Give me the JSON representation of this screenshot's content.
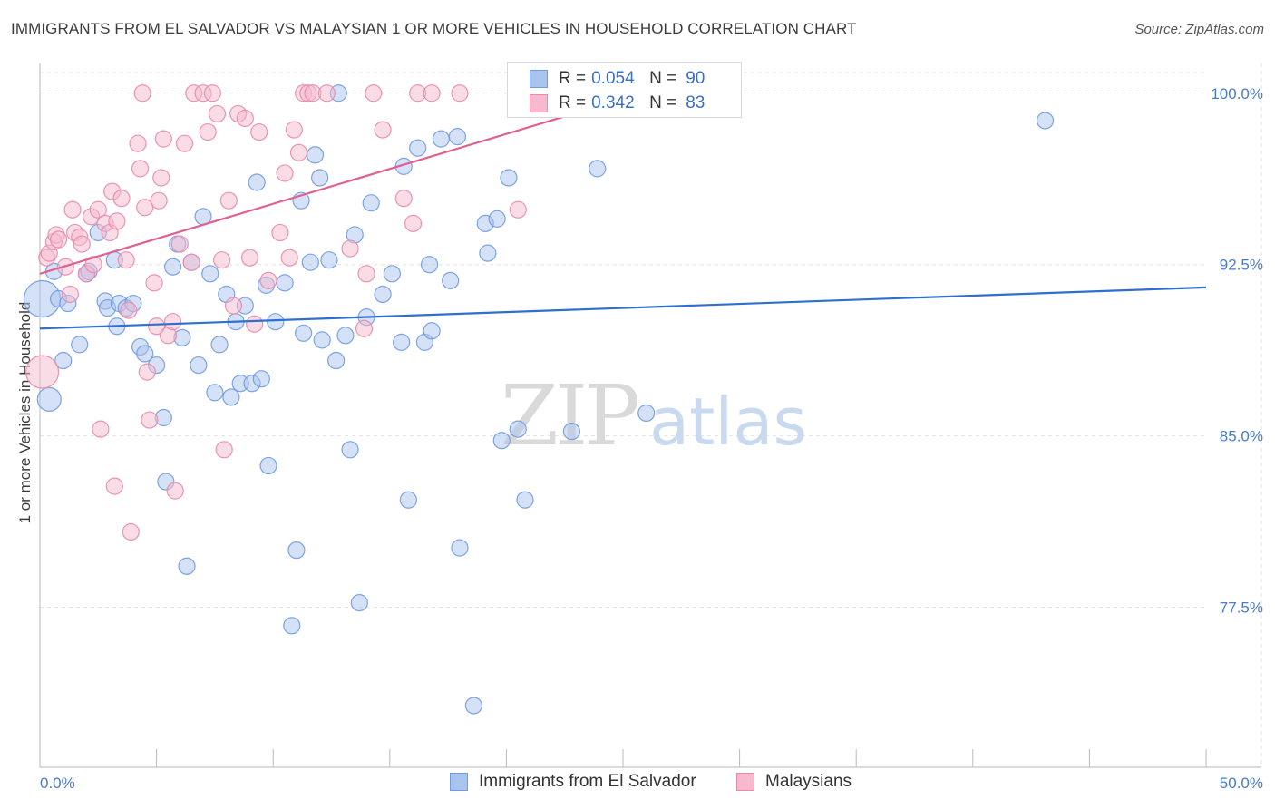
{
  "title": "IMMIGRANTS FROM EL SALVADOR VS MALAYSIAN 1 OR MORE VEHICLES IN HOUSEHOLD CORRELATION CHART",
  "source": "Source: ZipAtlas.com",
  "watermark": {
    "part1": "ZIP",
    "part2": "atlas"
  },
  "colors": {
    "blue_fill": "#a9c4ee",
    "blue_stroke": "#6f9be0",
    "blue_line": "#2f6fcf",
    "pink_fill": "#f6b9cd",
    "pink_stroke": "#e98aab",
    "pink_line": "#e0618f",
    "tick": "#4a7cc7",
    "grid": "#e2e2e2"
  },
  "legend": {
    "rows": [
      {
        "r_label": "R =",
        "r_value": "0.054",
        "n_label": "N =",
        "n_value": "90"
      },
      {
        "r_label": "R =",
        "r_value": "0.342",
        "n_label": "N =",
        "n_value": "83"
      }
    ]
  },
  "bottom_legend": {
    "series1": "Immigrants from El Salvador",
    "series2": "Malaysians"
  },
  "chart_data": {
    "type": "scatter",
    "title": "IMMIGRANTS FROM EL SALVADOR VS MALAYSIAN 1 OR MORE VEHICLES IN HOUSEHOLD CORRELATION CHART",
    "xlabel": "",
    "ylabel": "1 or more Vehicles in Household",
    "xlim": [
      0,
      50
    ],
    "ylim": [
      70.5,
      101.3
    ],
    "x_tick_labels": [
      {
        "value": 0,
        "label": "0.0%"
      },
      {
        "value": 50,
        "label": "50.0%"
      }
    ],
    "y_tick_labels": [
      {
        "value": 100,
        "label": "100.0%"
      },
      {
        "value": 92.5,
        "label": "92.5%"
      },
      {
        "value": 85,
        "label": "85.0%"
      },
      {
        "value": 77.5,
        "label": "77.5%"
      }
    ],
    "grid": true,
    "legend_position": "top-center",
    "series": [
      {
        "name": "Immigrants from El Salvador",
        "color": "#a9c4ee",
        "trend": {
          "x": [
            0,
            50
          ],
          "y": [
            89.7,
            91.5
          ]
        },
        "points": [
          [
            0.1,
            91.0
          ],
          [
            0.4,
            86.6
          ],
          [
            0.6,
            92.2
          ],
          [
            0.8,
            91.0
          ],
          [
            1.2,
            90.8
          ],
          [
            1.0,
            88.3
          ],
          [
            1.7,
            89.0
          ],
          [
            2.0,
            92.1
          ],
          [
            2.1,
            92.2
          ],
          [
            2.5,
            93.9
          ],
          [
            2.8,
            90.9
          ],
          [
            2.9,
            90.6
          ],
          [
            3.2,
            92.7
          ],
          [
            3.3,
            89.8
          ],
          [
            3.4,
            90.8
          ],
          [
            3.7,
            90.6
          ],
          [
            4.0,
            90.8
          ],
          [
            4.3,
            88.9
          ],
          [
            4.5,
            88.6
          ],
          [
            5.0,
            88.1
          ],
          [
            5.3,
            85.8
          ],
          [
            5.4,
            83.0
          ],
          [
            5.7,
            92.4
          ],
          [
            5.9,
            93.4
          ],
          [
            6.1,
            89.3
          ],
          [
            6.3,
            79.3
          ],
          [
            6.5,
            92.6
          ],
          [
            6.8,
            88.1
          ],
          [
            7.0,
            94.6
          ],
          [
            7.3,
            92.1
          ],
          [
            7.5,
            86.9
          ],
          [
            7.7,
            89.0
          ],
          [
            8.0,
            91.2
          ],
          [
            8.2,
            86.7
          ],
          [
            8.4,
            90.0
          ],
          [
            8.6,
            87.3
          ],
          [
            8.8,
            90.7
          ],
          [
            9.1,
            87.3
          ],
          [
            9.3,
            96.1
          ],
          [
            9.5,
            87.5
          ],
          [
            9.7,
            91.6
          ],
          [
            9.8,
            83.7
          ],
          [
            10.1,
            90.0
          ],
          [
            10.5,
            91.7
          ],
          [
            10.8,
            76.7
          ],
          [
            11.0,
            80.0
          ],
          [
            11.2,
            95.3
          ],
          [
            11.3,
            89.5
          ],
          [
            11.6,
            92.6
          ],
          [
            11.8,
            97.3
          ],
          [
            12.0,
            96.3
          ],
          [
            12.1,
            89.2
          ],
          [
            12.4,
            92.7
          ],
          [
            12.7,
            88.3
          ],
          [
            12.8,
            100.0
          ],
          [
            13.1,
            89.4
          ],
          [
            13.3,
            84.4
          ],
          [
            13.5,
            93.8
          ],
          [
            13.7,
            77.7
          ],
          [
            14.0,
            90.2
          ],
          [
            14.2,
            95.2
          ],
          [
            14.7,
            91.2
          ],
          [
            15.1,
            92.1
          ],
          [
            15.5,
            89.1
          ],
          [
            15.6,
            96.8
          ],
          [
            15.8,
            82.2
          ],
          [
            16.2,
            97.6
          ],
          [
            16.5,
            89.1
          ],
          [
            16.7,
            92.5
          ],
          [
            16.8,
            89.6
          ],
          [
            17.2,
            98.0
          ],
          [
            17.6,
            91.8
          ],
          [
            17.9,
            98.1
          ],
          [
            18.0,
            80.1
          ],
          [
            18.6,
            73.2
          ],
          [
            19.1,
            94.3
          ],
          [
            19.2,
            93.0
          ],
          [
            19.6,
            94.5
          ],
          [
            19.8,
            84.8
          ],
          [
            20.1,
            96.3
          ],
          [
            20.5,
            85.3
          ],
          [
            20.8,
            82.2
          ],
          [
            22.8,
            85.2
          ],
          [
            23.9,
            96.7
          ],
          [
            26.0,
            86.0
          ],
          [
            43.1,
            98.8
          ]
        ]
      },
      {
        "name": "Malaysians",
        "color": "#f6b9cd",
        "trend": {
          "x": [
            0,
            25.5
          ],
          "y": [
            92.1,
            99.9
          ]
        },
        "points": [
          [
            0.1,
            87.8
          ],
          [
            0.3,
            92.8
          ],
          [
            0.4,
            93.0
          ],
          [
            0.6,
            93.5
          ],
          [
            0.7,
            93.8
          ],
          [
            0.8,
            93.6
          ],
          [
            1.1,
            92.4
          ],
          [
            1.3,
            91.2
          ],
          [
            1.4,
            94.9
          ],
          [
            1.5,
            93.9
          ],
          [
            1.7,
            93.7
          ],
          [
            1.8,
            93.4
          ],
          [
            2.0,
            92.1
          ],
          [
            2.2,
            94.6
          ],
          [
            2.3,
            92.5
          ],
          [
            2.5,
            94.9
          ],
          [
            2.6,
            85.3
          ],
          [
            2.8,
            94.3
          ],
          [
            3.0,
            93.9
          ],
          [
            3.1,
            95.7
          ],
          [
            3.2,
            82.8
          ],
          [
            3.3,
            94.4
          ],
          [
            3.5,
            95.4
          ],
          [
            3.7,
            92.7
          ],
          [
            3.8,
            90.5
          ],
          [
            3.9,
            80.8
          ],
          [
            4.2,
            97.8
          ],
          [
            4.3,
            96.7
          ],
          [
            4.4,
            100.0
          ],
          [
            4.5,
            95.0
          ],
          [
            4.6,
            87.8
          ],
          [
            4.7,
            85.7
          ],
          [
            4.9,
            91.7
          ],
          [
            5.0,
            89.8
          ],
          [
            5.1,
            95.3
          ],
          [
            5.2,
            96.3
          ],
          [
            5.3,
            98.0
          ],
          [
            5.5,
            89.4
          ],
          [
            5.7,
            90.0
          ],
          [
            5.8,
            82.6
          ],
          [
            6.0,
            93.4
          ],
          [
            6.2,
            97.8
          ],
          [
            6.5,
            92.6
          ],
          [
            6.6,
            100.0
          ],
          [
            7.0,
            100.0
          ],
          [
            7.2,
            98.3
          ],
          [
            7.4,
            100.0
          ],
          [
            7.6,
            99.1
          ],
          [
            7.8,
            92.7
          ],
          [
            7.9,
            84.4
          ],
          [
            8.1,
            95.3
          ],
          [
            8.3,
            90.7
          ],
          [
            8.5,
            99.1
          ],
          [
            8.8,
            98.9
          ],
          [
            9.0,
            92.8
          ],
          [
            9.2,
            89.9
          ],
          [
            9.4,
            98.3
          ],
          [
            9.8,
            91.8
          ],
          [
            10.3,
            93.9
          ],
          [
            10.5,
            96.5
          ],
          [
            10.7,
            92.8
          ],
          [
            10.9,
            98.4
          ],
          [
            11.1,
            97.4
          ],
          [
            11.3,
            100.0
          ],
          [
            11.5,
            100.0
          ],
          [
            11.7,
            100.0
          ],
          [
            12.3,
            100.0
          ],
          [
            13.3,
            93.2
          ],
          [
            13.9,
            89.7
          ],
          [
            14.0,
            92.1
          ],
          [
            14.3,
            100.0
          ],
          [
            14.7,
            98.4
          ],
          [
            15.6,
            95.4
          ],
          [
            16.0,
            94.3
          ],
          [
            16.2,
            100.0
          ],
          [
            16.8,
            100.0
          ],
          [
            18.0,
            100.0
          ],
          [
            20.5,
            94.9
          ]
        ]
      }
    ]
  }
}
